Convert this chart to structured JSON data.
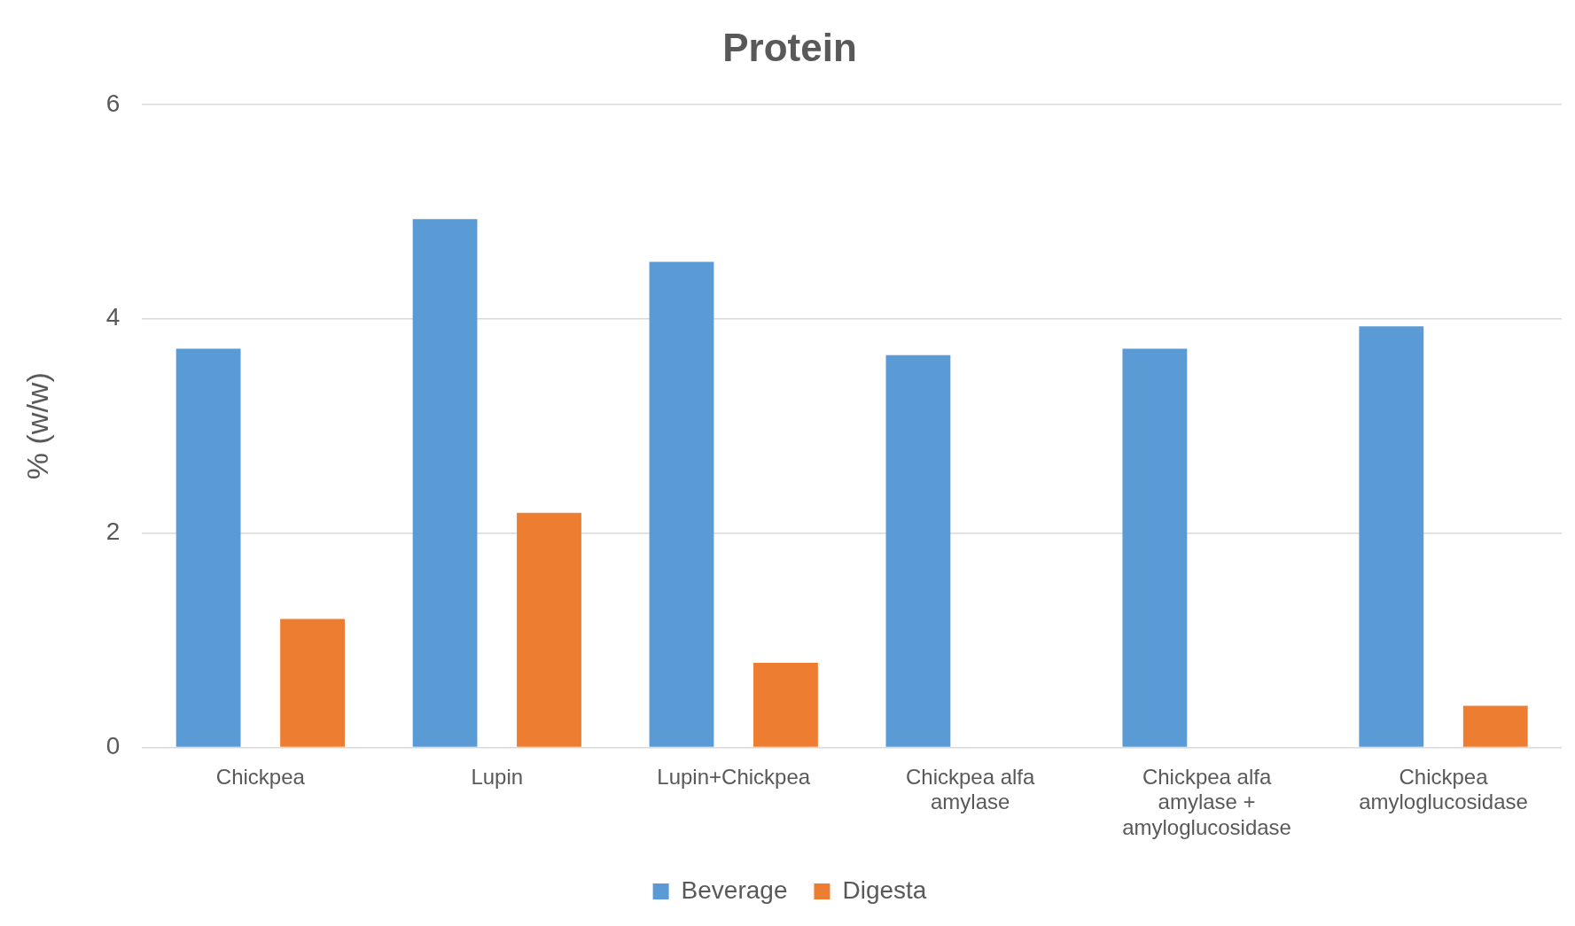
{
  "chart_data": {
    "type": "bar",
    "title": "Protein",
    "ylabel": "% (w/w)",
    "categories": [
      "Chickpea",
      "Lupin",
      "Lupin+Chickpea",
      "Chickpea alfa amylase",
      "Chickpea alfa amylase + amyloglucosidase",
      "Chickpea amyloglucosidase"
    ],
    "series": [
      {
        "name": "Beverage",
        "color": "#5b9bd5",
        "values": [
          3.72,
          4.93,
          4.53,
          3.66,
          3.72,
          3.93
        ]
      },
      {
        "name": "Digesta",
        "color": "#ed7d31",
        "values": [
          1.2,
          2.19,
          0.79,
          null,
          null,
          0.39
        ]
      }
    ],
    "ylim": [
      0,
      6
    ],
    "yticks": [
      0,
      2,
      4,
      6
    ],
    "grid": "y",
    "legend": "bottom"
  }
}
